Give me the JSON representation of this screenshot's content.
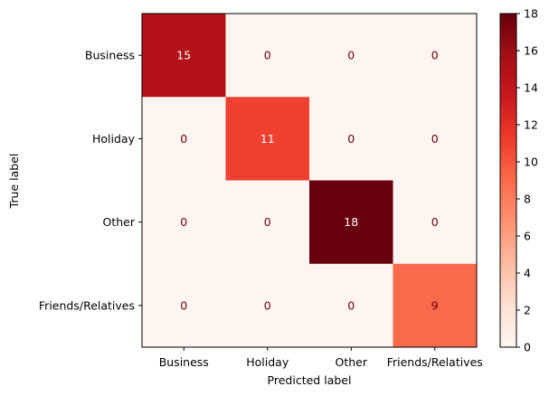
{
  "chart_data": {
    "type": "heatmap",
    "xlabel": "Predicted label",
    "ylabel": "True label",
    "x_categories": [
      "Business",
      "Holiday",
      "Other",
      "Friends/Relatives"
    ],
    "y_categories": [
      "Business",
      "Holiday",
      "Other",
      "Friends/Relatives"
    ],
    "matrix": [
      [
        15,
        0,
        0,
        0
      ],
      [
        0,
        11,
        0,
        0
      ],
      [
        0,
        0,
        18,
        0
      ],
      [
        0,
        0,
        0,
        9
      ]
    ],
    "colorbar": {
      "range": [
        0,
        18
      ],
      "ticks": [
        "0",
        "2",
        "4",
        "6",
        "8",
        "10",
        "12",
        "14",
        "16",
        "18"
      ],
      "colormap": "Reds"
    },
    "colors": {
      "light_text": "#ffffff",
      "dark_text": "#67000d"
    }
  }
}
